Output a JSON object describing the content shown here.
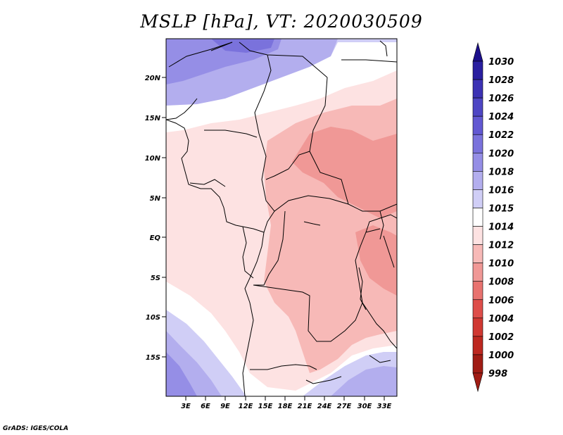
{
  "title": "MSLP [hPa], VT: 2020030509",
  "credit": "GrADS: IGES/COLA",
  "map": {
    "lat_labels": [
      "20N",
      "15N",
      "10N",
      "5N",
      "EQ",
      "5S",
      "10S",
      "15S"
    ],
    "lon_labels": [
      "3E",
      "6E",
      "9E",
      "12E",
      "15E",
      "18E",
      "21E",
      "24E",
      "27E",
      "30E",
      "33E"
    ]
  },
  "colorbar": {
    "levels": [
      {
        "label": "1030",
        "color": "#1c0f8c"
      },
      {
        "label": "1028",
        "color": "#2a1fa0"
      },
      {
        "label": "1026",
        "color": "#3c32b4"
      },
      {
        "label": "1024",
        "color": "#4e46c4"
      },
      {
        "label": "1022",
        "color": "#6258d2"
      },
      {
        "label": "1020",
        "color": "#7a72dc"
      },
      {
        "label": "1018",
        "color": "#958ee6"
      },
      {
        "label": "1016",
        "color": "#b3aeee"
      },
      {
        "label": "1015",
        "color": "#d0cef6"
      },
      {
        "label": "1014",
        "color": "#ffffff"
      },
      {
        "label": "1012",
        "color": "#fde2e2"
      },
      {
        "label": "1010",
        "color": "#f7b9b7"
      },
      {
        "label": "1008",
        "color": "#f09896"
      },
      {
        "label": "1006",
        "color": "#e8726f"
      },
      {
        "label": "1004",
        "color": "#de4e4a"
      },
      {
        "label": "1002",
        "color": "#d03832"
      },
      {
        "label": "1000",
        "color": "#bd2820"
      },
      {
        "label": "998",
        "color": "#a01c14"
      }
    ],
    "top_cap_color": "#1c0f8c",
    "bottom_cap_color": "#a01c14"
  }
}
